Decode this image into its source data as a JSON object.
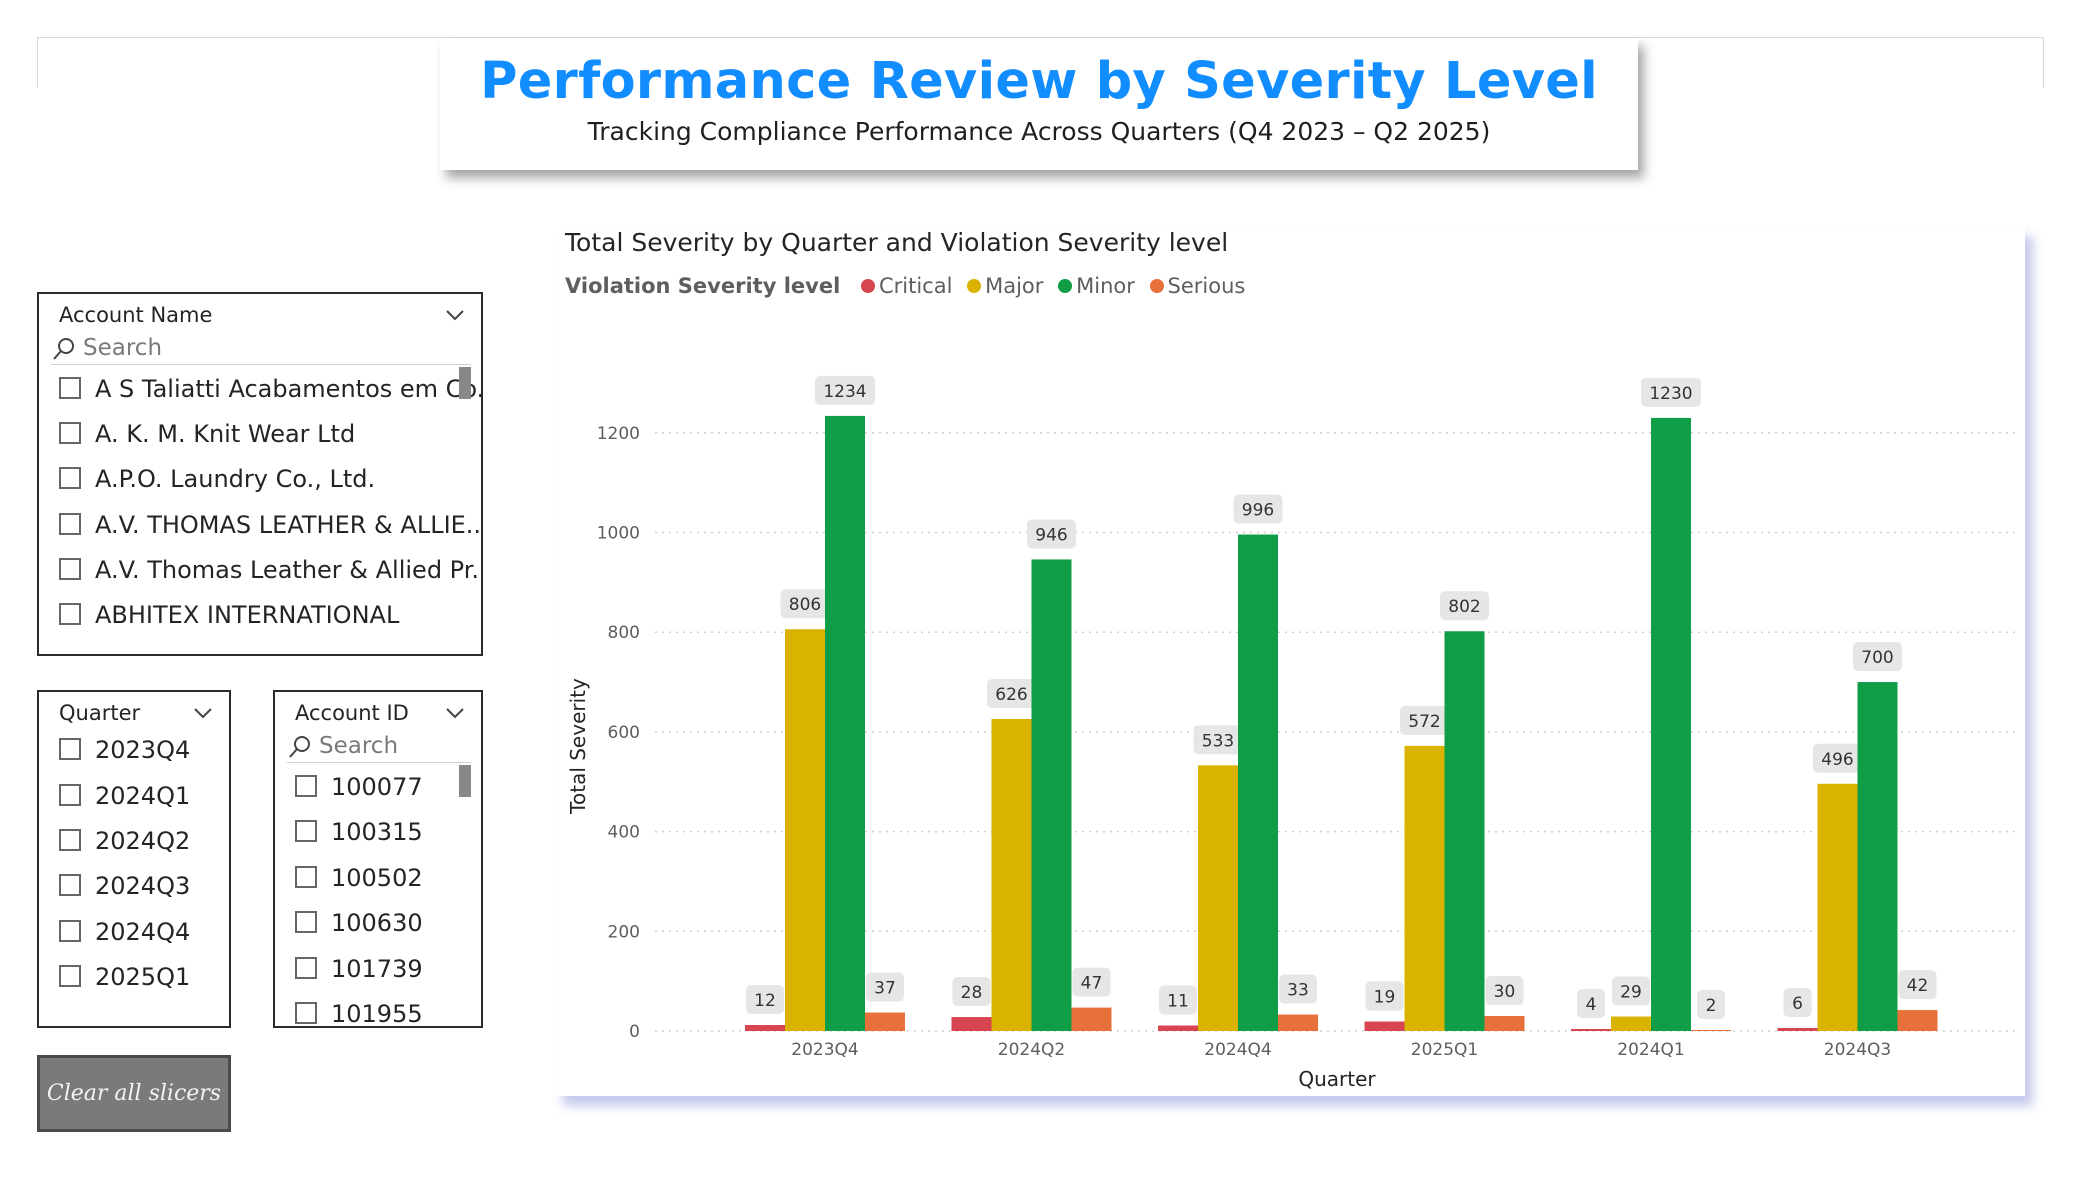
{
  "header": {
    "title": "Performance Review by Severity Level",
    "subtitle": "Tracking Compliance Performance Across Quarters (Q4 2023 – Q2 2025)",
    "title_color": "#118DFF"
  },
  "slicers": {
    "account_name": {
      "label": "Account Name",
      "search_placeholder": "Search",
      "items": [
        "A S Taliatti Acabamentos em Co...",
        "A. K. M. Knit Wear Ltd",
        "A.P.O. Laundry Co., Ltd.",
        "A.V. THOMAS LEATHER & ALLIE...",
        "A.V. Thomas Leather & Allied Pr...",
        "ABHITEX INTERNATIONAL"
      ]
    },
    "quarter": {
      "label": "Quarter",
      "items": [
        "2023Q4",
        "2024Q1",
        "2024Q2",
        "2024Q3",
        "2024Q4",
        "2025Q1"
      ]
    },
    "account_id": {
      "label": "Account ID",
      "search_placeholder": "Search",
      "items": [
        "100077",
        "100315",
        "100502",
        "100630",
        "101739",
        "101955"
      ]
    }
  },
  "buttons": {
    "clear_all": "Clear all slicers"
  },
  "chart_data": {
    "type": "bar",
    "title": "Total Severity by Quarter and Violation Severity level",
    "legend_title": "Violation Severity level",
    "legend_position": "top-left",
    "xlabel": "Quarter",
    "ylabel": "Total Severity",
    "categories": [
      "2023Q4",
      "2024Q2",
      "2024Q4",
      "2025Q1",
      "2024Q1",
      "2024Q3"
    ],
    "series": [
      {
        "name": "Critical",
        "color": "#D64550",
        "values": [
          12,
          28,
          11,
          19,
          4,
          6
        ]
      },
      {
        "name": "Major",
        "color": "#D9B300",
        "values": [
          806,
          626,
          533,
          572,
          29,
          496
        ]
      },
      {
        "name": "Minor",
        "color": "#0F9D45",
        "values": [
          1234,
          946,
          996,
          802,
          1230,
          700
        ]
      },
      {
        "name": "Serious",
        "color": "#E8703A",
        "values": [
          37,
          47,
          33,
          30,
          2,
          42
        ]
      }
    ],
    "ylim": [
      0,
      1300
    ],
    "yticks": [
      0,
      200,
      400,
      600,
      800,
      1000,
      1200
    ],
    "grid": true
  }
}
